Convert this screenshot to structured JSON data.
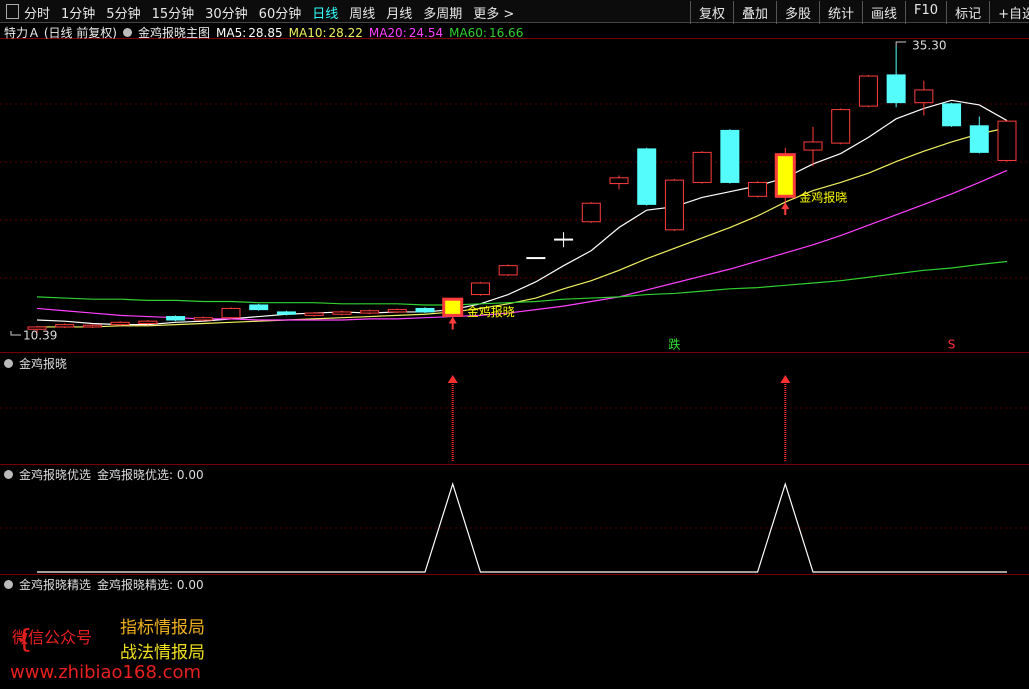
{
  "toolbar": {
    "periods": [
      "分时",
      "1分钟",
      "5分钟",
      "15分钟",
      "30分钟",
      "60分钟",
      "日线",
      "周线",
      "月线",
      "多周期",
      "更多 >"
    ],
    "active": "日线",
    "tools": [
      "复权",
      "叠加",
      "多股",
      "统计",
      "画线",
      "F10",
      "标记",
      "+自选"
    ]
  },
  "main": {
    "stock": "特力Ａ (日线 前复权)",
    "indicator": "金鸡报晓主图",
    "open": [
      10.8,
      11.0,
      11.0,
      11.2,
      11.3,
      11.9,
      11.6,
      11.8,
      12.9,
      12.3,
      12.0,
      12.1,
      12.2,
      12.3,
      12.6,
      12.0,
      13.8,
      15.5,
      17.0,
      18.6,
      20.1,
      23.4,
      26.4,
      19.4,
      23.5,
      28.0,
      22.3,
      22.3,
      26.3,
      26.9,
      30.1,
      32.8,
      30.4,
      30.3,
      28.4,
      25.4
    ],
    "close": [
      11.0,
      11.2,
      11.15,
      11.4,
      11.5,
      11.6,
      11.8,
      12.6,
      12.5,
      12.1,
      12.2,
      12.3,
      12.4,
      12.5,
      12.3,
      13.4,
      14.8,
      16.3,
      17.0,
      18.6,
      21.7,
      23.9,
      21.6,
      23.7,
      26.1,
      23.5,
      23.5,
      25.9,
      27.0,
      29.8,
      32.7,
      30.4,
      31.5,
      28.4,
      26.1,
      28.8
    ],
    "high": [
      11.1,
      11.3,
      11.25,
      11.5,
      11.6,
      12.0,
      11.9,
      12.7,
      13.0,
      12.4,
      12.3,
      12.4,
      12.5,
      12.6,
      12.7,
      13.5,
      14.9,
      16.4,
      17.0,
      19.2,
      21.8,
      24.1,
      26.5,
      23.8,
      26.2,
      28.1,
      23.6,
      26.5,
      28.3,
      29.9,
      32.8,
      35.3,
      32.3,
      30.4,
      29.2,
      28.9
    ],
    "low": [
      10.39,
      10.9,
      10.9,
      11.1,
      11.2,
      11.5,
      11.5,
      11.7,
      12.4,
      12.0,
      11.9,
      12.0,
      12.1,
      12.2,
      12.2,
      11.9,
      13.7,
      15.4,
      17.0,
      17.9,
      20.0,
      22.9,
      21.5,
      19.3,
      23.4,
      23.4,
      22.2,
      21.8,
      24.9,
      26.8,
      30.0,
      30.0,
      29.3,
      28.3,
      26.0,
      25.3
    ],
    "ma": [
      {
        "name": "MA5:",
        "color": "#ffffff",
        "values": [
          11.6,
          11.5,
          11.3,
          11.2,
          11.2,
          11.4,
          11.5,
          11.7,
          11.9,
          12.1,
          12.2,
          12.3,
          12.2,
          12.3,
          12.3,
          12.5,
          13.0,
          13.8,
          14.9,
          16.3,
          17.6,
          19.6,
          21.1,
          21.4,
          22.2,
          22.7,
          23.2,
          23.9,
          25.1,
          26.0,
          27.4,
          29.0,
          29.9,
          30.6,
          30.2,
          28.85
        ]
      },
      {
        "name": "MA10:",
        "color": "#f0f060",
        "values": [
          11.0,
          11.0,
          11.0,
          11.1,
          11.1,
          11.2,
          11.3,
          11.4,
          11.5,
          11.6,
          11.7,
          11.8,
          11.9,
          12.0,
          12.1,
          12.3,
          12.6,
          13.0,
          13.5,
          14.3,
          15.0,
          15.9,
          16.9,
          17.8,
          18.7,
          19.6,
          20.6,
          21.8,
          22.8,
          23.5,
          24.3,
          25.3,
          26.2,
          27.0,
          27.7,
          28.22
        ]
      },
      {
        "name": "MA20:",
        "color": "#ff40ff",
        "values": [
          12.6,
          12.4,
          12.2,
          12.0,
          11.9,
          11.8,
          11.7,
          11.7,
          11.6,
          11.6,
          11.6,
          11.6,
          11.7,
          11.7,
          11.8,
          11.9,
          12.0,
          12.2,
          12.5,
          12.8,
          13.2,
          13.6,
          14.2,
          14.8,
          15.4,
          16.0,
          16.7,
          17.4,
          18.1,
          18.9,
          19.8,
          20.7,
          21.6,
          22.5,
          23.5,
          24.54
        ]
      },
      {
        "name": "MA60:",
        "color": "#30d030",
        "values": [
          13.6,
          13.5,
          13.4,
          13.4,
          13.3,
          13.3,
          13.2,
          13.2,
          13.1,
          13.1,
          13.1,
          13.0,
          13.0,
          13.0,
          12.9,
          12.9,
          13.0,
          13.1,
          13.2,
          13.4,
          13.5,
          13.6,
          13.8,
          13.9,
          14.1,
          14.3,
          14.4,
          14.6,
          14.8,
          15.0,
          15.3,
          15.6,
          15.9,
          16.1,
          16.4,
          16.66
        ]
      }
    ],
    "colors": {
      "up": "#ff3c3c",
      "down": "#54fcfc",
      "flat": "#ffffff",
      "signal": "#ffff00"
    },
    "high_label": {
      "value": 35.3,
      "label": "35.30"
    },
    "low_label": {
      "value": 10.39,
      "label": "10.39"
    },
    "signal_text": "金鸡报晓",
    "marks": [
      {
        "index": 23,
        "text": "跌",
        "color": "#30e030"
      },
      {
        "index": 33,
        "text": "S",
        "color": "#ff3030"
      }
    ]
  },
  "panel2": {
    "title": "金鸡报晓",
    "values": [
      0,
      0,
      0,
      0,
      0,
      0,
      0,
      0,
      0,
      0,
      0,
      0,
      0,
      0,
      0,
      1,
      0,
      0,
      0,
      0,
      0,
      0,
      0,
      0,
      0,
      0,
      0,
      1,
      0,
      0,
      0,
      0,
      0,
      0,
      0,
      0
    ]
  },
  "panel3": {
    "title": "金鸡报晓优选",
    "legend": "金鸡报晓优选: 0.00",
    "ylim": [
      0,
      1
    ],
    "values": [
      0,
      0,
      0,
      0,
      0,
      0,
      0,
      0,
      0,
      0,
      0,
      0,
      0,
      0,
      0,
      1,
      0,
      0,
      0,
      0,
      0,
      0,
      0,
      0,
      0,
      0,
      0,
      1,
      0,
      0,
      0,
      0,
      0,
      0,
      0,
      0
    ]
  },
  "panel4": {
    "title": "金鸡报晓精选",
    "legend": "金鸡报晓精选: 0.00"
  },
  "branding": {
    "wechat": "微信公众号",
    "lines": [
      "指标情报局",
      "战法情报局"
    ],
    "url": "www.zhibiao168.com"
  }
}
